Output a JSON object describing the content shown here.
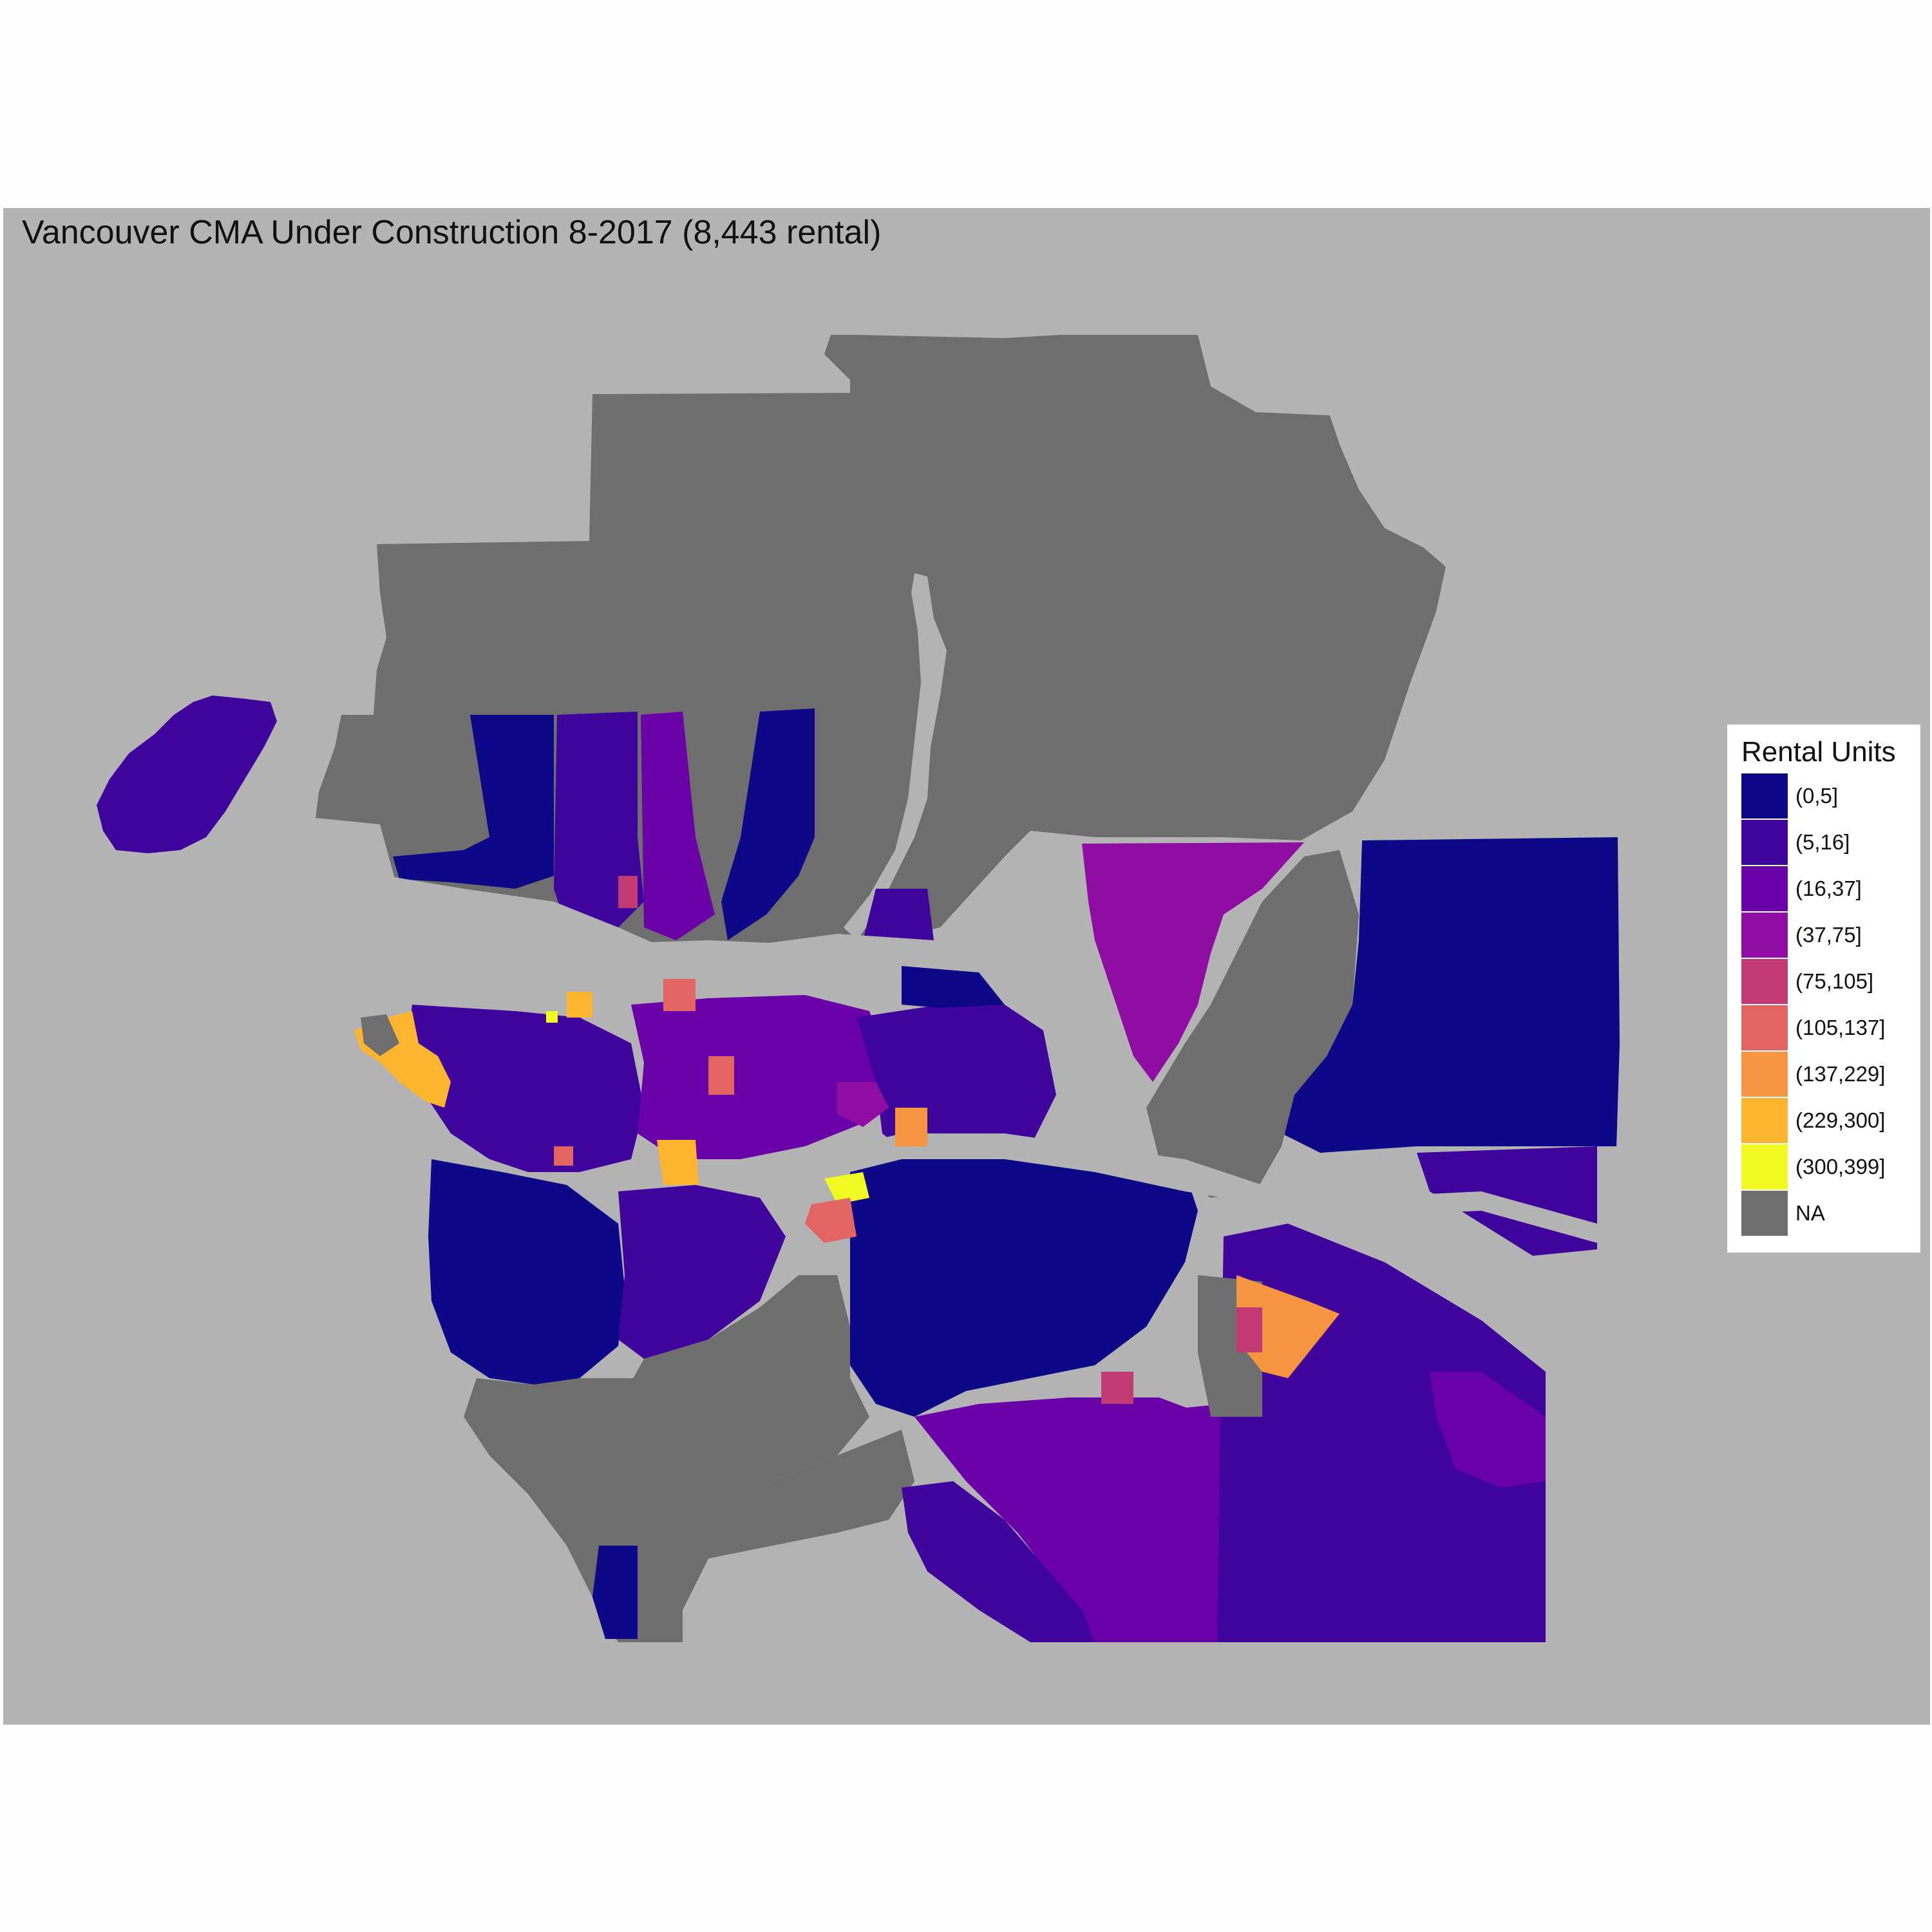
{
  "title": "Vancouver CMA Under Construction 8-2017 (8,443 rental)",
  "legend": {
    "title": "Rental Units",
    "items": [
      {
        "label": "(0,5]",
        "color": "#0d0887"
      },
      {
        "label": "(5,16]",
        "color": "#3e049c"
      },
      {
        "label": "(16,37]",
        "color": "#6a00a8"
      },
      {
        "label": "(37,75]",
        "color": "#900da4"
      },
      {
        "label": "(75,105]",
        "color": "#c33b75"
      },
      {
        "label": "(105,137]",
        "color": "#e16462"
      },
      {
        "label": "(137,229]",
        "color": "#f89540"
      },
      {
        "label": "(229,300]",
        "color": "#fdb42f"
      },
      {
        "label": "(300,399]",
        "color": "#f0f921"
      },
      {
        "label": "NA",
        "color": "#6e6e6e"
      }
    ]
  },
  "colors": {
    "water": "#b3b3b3",
    "na": "#6e6e6e",
    "background": "#fdfdfd"
  }
}
